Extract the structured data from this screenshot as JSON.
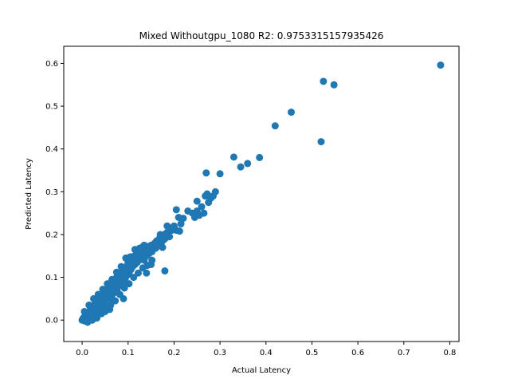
{
  "chart_data": {
    "type": "scatter",
    "title": "Mixed Withoutgpu_1080 R2: 0.9753315157935426",
    "xlabel": "Actual Latency",
    "ylabel": "Predicted Latency",
    "xlim": [
      -0.04,
      0.82
    ],
    "ylim": [
      -0.05,
      0.64
    ],
    "xticks": [
      0.0,
      0.1,
      0.2,
      0.3,
      0.4,
      0.5,
      0.6,
      0.7,
      0.8
    ],
    "xtick_labels": [
      "0.0",
      "0.1",
      "0.2",
      "0.3",
      "0.4",
      "0.5",
      "0.6",
      "0.7",
      "0.8"
    ],
    "yticks": [
      0.0,
      0.1,
      0.2,
      0.3,
      0.4,
      0.5,
      0.6
    ],
    "ytick_labels": [
      "0.0",
      "0.1",
      "0.2",
      "0.3",
      "0.4",
      "0.5",
      "0.6"
    ],
    "grid": false,
    "marker_color": "#1f77b4",
    "series": [
      {
        "points": [
          [
            0.0,
            0.0
          ],
          [
            0.002,
            0.004
          ],
          [
            0.004,
            0.002
          ],
          [
            0.005,
            0.008
          ],
          [
            0.006,
            -0.002
          ],
          [
            0.008,
            0.01
          ],
          [
            0.01,
            0.006
          ],
          [
            0.01,
            0.015
          ],
          [
            0.012,
            0.003
          ],
          [
            0.014,
            0.012
          ],
          [
            0.015,
            0.02
          ],
          [
            0.017,
            0.008
          ],
          [
            0.018,
            0.025
          ],
          [
            0.02,
            0.015
          ],
          [
            0.02,
            0.03
          ],
          [
            0.022,
            0.01
          ],
          [
            0.024,
            0.022
          ],
          [
            0.025,
            0.035
          ],
          [
            0.026,
            0.018
          ],
          [
            0.028,
            0.028
          ],
          [
            0.03,
            0.04
          ],
          [
            0.03,
            0.02
          ],
          [
            0.032,
            0.032
          ],
          [
            0.034,
            0.045
          ],
          [
            0.035,
            0.025
          ],
          [
            0.036,
            0.038
          ],
          [
            0.038,
            0.05
          ],
          [
            0.04,
            0.03
          ],
          [
            0.04,
            0.055
          ],
          [
            0.042,
            0.042
          ],
          [
            0.044,
            0.06
          ],
          [
            0.045,
            0.035
          ],
          [
            0.046,
            0.048
          ],
          [
            0.048,
            0.065
          ],
          [
            0.05,
            0.04
          ],
          [
            0.05,
            0.055
          ],
          [
            0.052,
            0.07
          ],
          [
            0.054,
            0.05
          ],
          [
            0.055,
            0.062
          ],
          [
            0.056,
            0.075
          ],
          [
            0.058,
            0.058
          ],
          [
            0.06,
            0.08
          ],
          [
            0.06,
            0.065
          ],
          [
            0.062,
            0.05
          ],
          [
            0.064,
            0.085
          ],
          [
            0.065,
            0.07
          ],
          [
            0.066,
            0.06
          ],
          [
            0.068,
            0.09
          ],
          [
            0.07,
            0.075
          ],
          [
            0.07,
            0.095
          ],
          [
            0.072,
            0.065
          ],
          [
            0.074,
            0.082
          ],
          [
            0.075,
            0.1
          ],
          [
            0.076,
            0.07
          ],
          [
            0.078,
            0.09
          ],
          [
            0.08,
            0.105
          ],
          [
            0.08,
            0.08
          ],
          [
            0.082,
            0.095
          ],
          [
            0.084,
            0.11
          ],
          [
            0.085,
            0.085
          ],
          [
            0.086,
            0.1
          ],
          [
            0.088,
            0.115
          ],
          [
            0.09,
            0.09
          ],
          [
            0.09,
            0.105
          ],
          [
            0.092,
            0.12
          ],
          [
            0.094,
            0.098
          ],
          [
            0.095,
            0.112
          ],
          [
            0.096,
            0.125
          ],
          [
            0.098,
            0.105
          ],
          [
            0.1,
            0.12
          ],
          [
            0.1,
            0.135
          ],
          [
            0.102,
            0.11
          ],
          [
            0.104,
            0.128
          ],
          [
            0.105,
            0.14
          ],
          [
            0.106,
            0.118
          ],
          [
            0.108,
            0.132
          ],
          [
            0.11,
            0.145
          ],
          [
            0.11,
            0.125
          ],
          [
            0.112,
            0.138
          ],
          [
            0.114,
            0.15
          ],
          [
            0.115,
            0.13
          ],
          [
            0.116,
            0.142
          ],
          [
            0.118,
            0.155
          ],
          [
            0.12,
            0.135
          ],
          [
            0.12,
            0.148
          ],
          [
            0.122,
            0.16
          ],
          [
            0.124,
            0.14
          ],
          [
            0.125,
            0.152
          ],
          [
            0.126,
            0.165
          ],
          [
            0.128,
            0.145
          ],
          [
            0.13,
            0.158
          ],
          [
            0.13,
            0.17
          ],
          [
            0.132,
            0.15
          ],
          [
            0.134,
            0.162
          ],
          [
            0.135,
            0.14
          ],
          [
            0.136,
            0.155
          ],
          [
            0.138,
            0.168
          ],
          [
            0.14,
            0.15
          ],
          [
            0.14,
            0.16
          ],
          [
            0.142,
            0.172
          ],
          [
            0.145,
            0.155
          ],
          [
            0.148,
            0.165
          ],
          [
            0.15,
            0.175
          ],
          [
            0.152,
            0.16
          ],
          [
            0.155,
            0.17
          ],
          [
            0.158,
            0.18
          ],
          [
            0.16,
            0.168
          ],
          [
            0.162,
            0.185
          ],
          [
            0.165,
            0.175
          ],
          [
            0.168,
            0.19
          ],
          [
            0.17,
            0.18
          ],
          [
            0.172,
            0.195
          ],
          [
            0.175,
            0.185
          ],
          [
            0.178,
            0.2
          ],
          [
            0.18,
            0.19
          ],
          [
            0.185,
            0.205
          ],
          [
            0.19,
            0.195
          ],
          [
            0.195,
            0.21
          ],
          [
            0.2,
            0.22
          ],
          [
            0.205,
            0.21
          ],
          [
            0.21,
            0.24
          ],
          [
            0.215,
            0.225
          ],
          [
            0.22,
            0.238
          ],
          [
            0.24,
            0.25
          ],
          [
            0.245,
            0.24
          ],
          [
            0.25,
            0.255
          ],
          [
            0.255,
            0.245
          ],
          [
            0.26,
            0.265
          ],
          [
            0.265,
            0.25
          ],
          [
            0.268,
            0.29
          ],
          [
            0.272,
            0.295
          ],
          [
            0.275,
            0.275
          ],
          [
            0.28,
            0.285
          ],
          [
            0.285,
            0.29
          ],
          [
            0.29,
            0.3
          ],
          [
            0.005,
            0.02
          ],
          [
            0.015,
            0.035
          ],
          [
            0.025,
            0.05
          ],
          [
            0.035,
            0.06
          ],
          [
            0.045,
            0.072
          ],
          [
            0.055,
            0.085
          ],
          [
            0.065,
            0.095
          ],
          [
            0.075,
            0.112
          ],
          [
            0.085,
            0.125
          ],
          [
            0.095,
            0.145
          ],
          [
            0.105,
            0.148
          ],
          [
            0.115,
            0.165
          ],
          [
            0.125,
            0.168
          ],
          [
            0.135,
            0.175
          ],
          [
            0.012,
            -0.005
          ],
          [
            0.022,
            0.0
          ],
          [
            0.032,
            0.005
          ],
          [
            0.042,
            0.015
          ],
          [
            0.052,
            0.025
          ],
          [
            0.062,
            0.035
          ],
          [
            0.072,
            0.045
          ],
          [
            0.082,
            0.06
          ],
          [
            0.092,
            0.075
          ],
          [
            0.102,
            0.085
          ],
          [
            0.112,
            0.1
          ],
          [
            0.122,
            0.11
          ],
          [
            0.132,
            0.122
          ],
          [
            0.142,
            0.128
          ],
          [
            0.152,
            0.14
          ],
          [
            0.05,
            0.02
          ],
          [
            0.06,
            0.025
          ],
          [
            0.09,
            0.05
          ],
          [
            0.1,
            0.145
          ],
          [
            0.14,
            0.11
          ],
          [
            0.15,
            0.13
          ],
          [
            0.16,
            0.18
          ],
          [
            0.17,
            0.2
          ],
          [
            0.175,
            0.17
          ],
          [
            0.18,
            0.115
          ],
          [
            0.185,
            0.22
          ],
          [
            0.19,
            0.215
          ],
          [
            0.205,
            0.258
          ],
          [
            0.212,
            0.208
          ],
          [
            0.23,
            0.255
          ],
          [
            0.25,
            0.278
          ],
          [
            0.27,
            0.344
          ],
          [
            0.3,
            0.342
          ],
          [
            0.33,
            0.381
          ],
          [
            0.345,
            0.358
          ],
          [
            0.36,
            0.366
          ],
          [
            0.386,
            0.38
          ],
          [
            0.42,
            0.454
          ],
          [
            0.455,
            0.486
          ],
          [
            0.52,
            0.417
          ],
          [
            0.525,
            0.558
          ],
          [
            0.548,
            0.55
          ],
          [
            0.78,
            0.596
          ]
        ]
      }
    ]
  }
}
